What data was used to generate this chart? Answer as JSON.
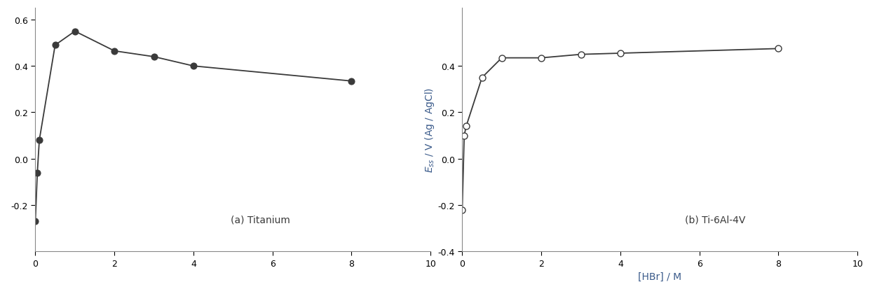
{
  "panel_a": {
    "label": "(a) Titanium",
    "x": [
      0.0,
      0.05,
      0.1,
      0.5,
      1.0,
      2.0,
      3.0,
      4.0,
      8.0
    ],
    "y": [
      -0.27,
      -0.06,
      0.08,
      0.49,
      0.55,
      0.465,
      0.44,
      0.4,
      0.335
    ]
  },
  "panel_b": {
    "label": "(b) Ti-6Al-4V",
    "x": [
      0.0,
      0.05,
      0.1,
      0.5,
      1.0,
      2.0,
      3.0,
      4.0,
      8.0
    ],
    "y": [
      -0.22,
      0.1,
      0.14,
      0.35,
      0.435,
      0.435,
      0.45,
      0.455,
      0.475
    ]
  },
  "ylabel_b": "E$_{ss}$ / V (Ag / AgCl)",
  "xlabel": "[HBr] / M",
  "ylim": [
    -0.4,
    0.65
  ],
  "xlim": [
    0,
    10
  ],
  "yticks_a": [
    -0.2,
    0.0,
    0.2,
    0.4,
    0.6
  ],
  "yticks_b": [
    -0.4,
    -0.2,
    0.0,
    0.2,
    0.4
  ],
  "xticks": [
    0,
    2,
    4,
    6,
    8,
    10
  ],
  "line_color": "#3a3a3a",
  "background_color": "#ffffff",
  "label_fontsize": 10,
  "tick_fontsize": 9,
  "annotation_fontsize": 10,
  "marker_size": 6.5,
  "linewidth": 1.3
}
